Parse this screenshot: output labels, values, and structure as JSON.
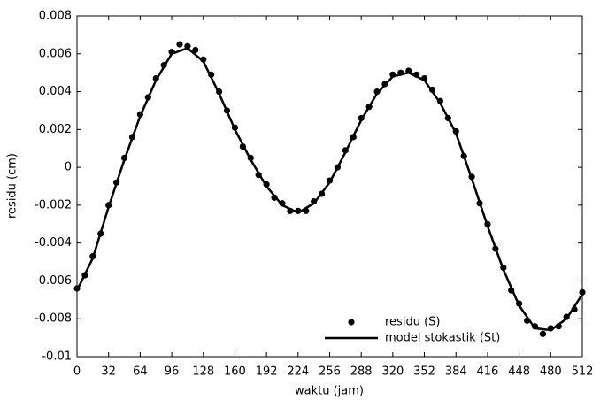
{
  "chart_data": {
    "type": "scatter_line",
    "xlabel": "waktu (jam)",
    "ylabel": "residu (cm)",
    "xlim": [
      0,
      512
    ],
    "xticks": [
      0,
      32,
      64,
      96,
      128,
      160,
      192,
      224,
      256,
      288,
      320,
      352,
      384,
      416,
      448,
      480,
      512
    ],
    "ylim": [
      -0.01,
      0.008
    ],
    "yticks": [
      -0.01,
      -0.008,
      -0.006,
      -0.004,
      -0.002,
      0,
      0.002,
      0.004,
      0.006,
      0.008
    ],
    "legend": "lower right",
    "series": [
      {
        "name": "residu (S)",
        "color": "#000000",
        "style": "dots",
        "x": [
          0,
          8,
          16,
          24,
          32,
          40,
          48,
          56,
          64,
          72,
          80,
          88,
          96,
          104,
          112,
          120,
          128,
          136,
          144,
          152,
          160,
          168,
          176,
          184,
          192,
          200,
          208,
          216,
          224,
          232,
          240,
          248,
          256,
          264,
          272,
          280,
          288,
          296,
          304,
          312,
          320,
          328,
          336,
          344,
          352,
          360,
          368,
          376,
          384,
          392,
          400,
          408,
          416,
          424,
          432,
          440,
          448,
          456,
          464,
          472,
          480,
          488,
          496,
          504,
          512
        ],
        "values": [
          -0.0064,
          -0.0057,
          -0.0047,
          -0.0035,
          -0.002,
          -0.0008,
          0.0005,
          0.0016,
          0.0028,
          0.0037,
          0.0047,
          0.0054,
          0.0061,
          0.0065,
          0.0064,
          0.0062,
          0.0057,
          0.0049,
          0.004,
          0.003,
          0.0021,
          0.0011,
          0.0005,
          -0.0004,
          -0.0009,
          -0.0016,
          -0.0019,
          -0.0023,
          -0.0023,
          -0.0023,
          -0.0018,
          -0.0014,
          -0.0007,
          0,
          0.0009,
          0.0016,
          0.0026,
          0.0032,
          0.004,
          0.0044,
          0.0049,
          0.005,
          0.0051,
          0.0049,
          0.0047,
          0.0041,
          0.0035,
          0.0026,
          0.0019,
          0.0006,
          -0.0005,
          -0.0019,
          -0.003,
          -0.0043,
          -0.0053,
          -0.0065,
          -0.0072,
          -0.0081,
          -0.0084,
          -0.0088,
          -0.0085,
          -0.0084,
          -0.0079,
          -0.0075,
          -0.0066
        ]
      },
      {
        "name": "model stokastik (St)",
        "color": "#000000",
        "style": "line",
        "x": [
          0,
          16,
          32,
          48,
          64,
          80,
          96,
          112,
          128,
          144,
          160,
          176,
          192,
          208,
          224,
          240,
          256,
          272,
          288,
          304,
          320,
          336,
          352,
          368,
          384,
          400,
          416,
          432,
          448,
          464,
          480,
          496,
          512
        ],
        "values": [
          -0.0065,
          -0.0048,
          -0.0021,
          0.0004,
          0.0027,
          0.0046,
          0.006,
          0.0063,
          0.0056,
          0.0039,
          0.002,
          0.0004,
          -0.001,
          -0.002,
          -0.0024,
          -0.0019,
          -0.0008,
          0.0008,
          0.0025,
          0.0039,
          0.0048,
          0.005,
          0.0046,
          0.0034,
          0.0018,
          -0.0006,
          -0.0031,
          -0.0054,
          -0.0073,
          -0.0085,
          -0.0086,
          -0.008,
          -0.0067
        ]
      }
    ]
  }
}
